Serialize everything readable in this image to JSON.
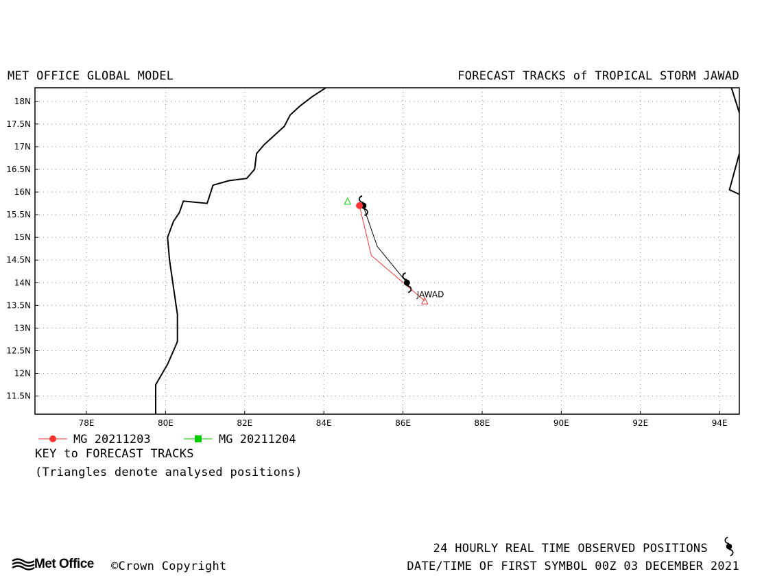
{
  "header": {
    "left_title": "MET OFFICE GLOBAL MODEL",
    "right_title": "FORECAST TRACKS of TROPICAL STORM JAWAD"
  },
  "map": {
    "lon_range": [
      76.7,
      94.5
    ],
    "lat_range": [
      11.1,
      18.3
    ],
    "x_ticks": [
      {
        "value": 78,
        "label": "78E"
      },
      {
        "value": 80,
        "label": "80E"
      },
      {
        "value": 82,
        "label": "82E"
      },
      {
        "value": 84,
        "label": "84E"
      },
      {
        "value": 86,
        "label": "86E"
      },
      {
        "value": 88,
        "label": "88E"
      },
      {
        "value": 90,
        "label": "90E"
      },
      {
        "value": 92,
        "label": "92E"
      },
      {
        "value": 94,
        "label": "94E"
      }
    ],
    "y_ticks": [
      {
        "value": 11.5,
        "label": "11.5N"
      },
      {
        "value": 12,
        "label": "12N"
      },
      {
        "value": 12.5,
        "label": "12.5N"
      },
      {
        "value": 13,
        "label": "13N"
      },
      {
        "value": 13.5,
        "label": "13.5N"
      },
      {
        "value": 14,
        "label": "14N"
      },
      {
        "value": 14.5,
        "label": "14.5N"
      },
      {
        "value": 15,
        "label": "15N"
      },
      {
        "value": 15.5,
        "label": "15.5N"
      },
      {
        "value": 16,
        "label": "16N"
      },
      {
        "value": 16.5,
        "label": "16.5N"
      },
      {
        "value": 17,
        "label": "17N"
      },
      {
        "value": 17.5,
        "label": "17.5N"
      },
      {
        "value": 18,
        "label": "18N"
      }
    ],
    "grid": true,
    "coastline_west": [
      [
        84.05,
        18.3
      ],
      [
        83.7,
        18.1
      ],
      [
        83.4,
        17.9
      ],
      [
        83.15,
        17.7
      ],
      [
        83.0,
        17.45
      ],
      [
        82.75,
        17.25
      ],
      [
        82.5,
        17.05
      ],
      [
        82.3,
        16.85
      ],
      [
        82.25,
        16.5
      ],
      [
        82.05,
        16.3
      ],
      [
        81.6,
        16.25
      ],
      [
        81.2,
        16.15
      ],
      [
        81.05,
        15.75
      ],
      [
        80.45,
        15.8
      ],
      [
        80.35,
        15.55
      ],
      [
        80.2,
        15.35
      ],
      [
        80.05,
        15.0
      ],
      [
        80.1,
        14.5
      ],
      [
        80.2,
        13.9
      ],
      [
        80.3,
        13.3
      ],
      [
        80.3,
        12.7
      ],
      [
        80.05,
        12.2
      ],
      [
        79.75,
        11.75
      ],
      [
        79.75,
        11.1
      ]
    ],
    "coastline_east_a": [
      [
        94.3,
        18.3
      ],
      [
        94.5,
        17.75
      ]
    ],
    "coastline_east_b": [
      [
        94.5,
        16.85
      ],
      [
        94.25,
        16.05
      ],
      [
        94.5,
        15.95
      ]
    ],
    "observed_track": [
      [
        85.0,
        15.7
      ],
      [
        86.1,
        14.0
      ]
    ],
    "observed_track_path": [
      [
        85.0,
        15.7
      ],
      [
        85.05,
        15.55
      ],
      [
        85.35,
        14.8
      ],
      [
        86.1,
        14.0
      ]
    ],
    "storm_label": {
      "text": "JAWAD",
      "lon": 86.35,
      "lat": 13.68
    },
    "forecasts": [
      {
        "name": "MG 20211203",
        "color": "#ff3333",
        "marker": "circle",
        "track": [
          [
            86.55,
            13.6
          ],
          [
            85.2,
            14.6
          ],
          [
            84.9,
            15.7
          ]
        ],
        "analysed": {
          "lon": 86.55,
          "lat": 13.6
        }
      },
      {
        "name": "MG 20211204",
        "color": "#00cc00",
        "marker": "square",
        "track": [],
        "analysed": {
          "lon": 84.6,
          "lat": 15.8
        }
      }
    ]
  },
  "legend": {
    "key_title": "KEY to FORECAST TRACKS",
    "key_note": "(Triangles denote analysed positions)"
  },
  "footer": {
    "observed_label": "24 HOURLY REAL TIME OBSERVED POSITIONS",
    "date_line": "DATE/TIME OF FIRST SYMBOL 00Z 03 DECEMBER 2021",
    "brand": "Met Office",
    "copyright": "Crown Copyright"
  },
  "colors": {
    "forecast_1": "#ff3333",
    "forecast_2": "#00cc00",
    "observed": "#000000"
  }
}
